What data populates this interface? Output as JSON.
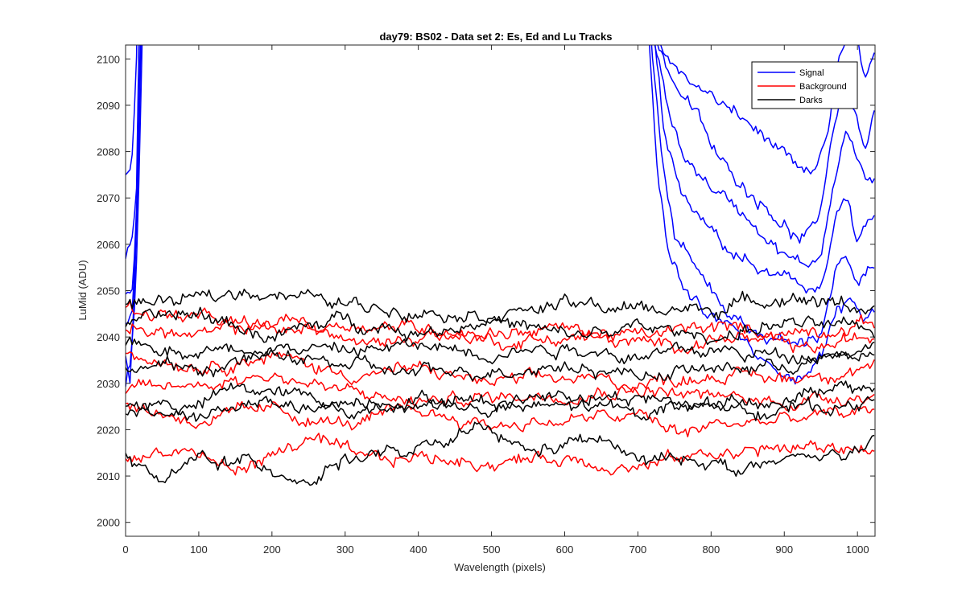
{
  "chart_data": {
    "type": "line",
    "title": "day79: BS02 - Data set 2: Es, Ed and Lu Tracks",
    "xlabel": "Wavelength (pixels)",
    "ylabel": "LuMid (ADU)",
    "xlim": [
      0,
      1024
    ],
    "ylim": [
      1997,
      2103
    ],
    "xticks": [
      0,
      100,
      200,
      300,
      400,
      500,
      600,
      700,
      800,
      900,
      1000
    ],
    "yticks": [
      2000,
      2010,
      2020,
      2030,
      2040,
      2050,
      2060,
      2070,
      2080,
      2090,
      2100
    ],
    "grid": false,
    "legend_position": "top-right",
    "legend": [
      {
        "name": "Signal",
        "color": "#0000ff"
      },
      {
        "name": "Background",
        "color": "#ff0000"
      },
      {
        "name": "Darks",
        "color": "#000000"
      }
    ],
    "series": [
      {
        "group": "Signal",
        "color": "#0000ff",
        "knots": [
          [
            0,
            2075
          ],
          [
            5,
            2074
          ],
          [
            10,
            2080
          ],
          [
            15,
            2100
          ],
          [
            18,
            2130
          ],
          [
            22,
            2160
          ],
          [
            40,
            2200
          ],
          [
            680,
            2200
          ],
          [
            710,
            2150
          ],
          [
            724,
            2104
          ],
          [
            740,
            2100
          ],
          [
            760,
            2097
          ],
          [
            800,
            2092
          ],
          [
            850,
            2086
          ],
          [
            880,
            2082
          ],
          [
            920,
            2075
          ],
          [
            940,
            2074
          ],
          [
            960,
            2085
          ],
          [
            975,
            2100
          ],
          [
            990,
            2106
          ],
          [
            1000,
            2104
          ],
          [
            1010,
            2095
          ],
          [
            1024,
            2100
          ]
        ]
      },
      {
        "group": "Signal",
        "color": "#0000ff",
        "knots": [
          [
            0,
            2058
          ],
          [
            10,
            2060
          ],
          [
            15,
            2070
          ],
          [
            18,
            2100
          ],
          [
            24,
            2160
          ],
          [
            40,
            2200
          ],
          [
            680,
            2200
          ],
          [
            705,
            2150
          ],
          [
            725,
            2104
          ],
          [
            750,
            2095
          ],
          [
            780,
            2088
          ],
          [
            810,
            2078
          ],
          [
            850,
            2072
          ],
          [
            880,
            2068
          ],
          [
            920,
            2061
          ],
          [
            945,
            2063
          ],
          [
            965,
            2083
          ],
          [
            980,
            2095
          ],
          [
            995,
            2090
          ],
          [
            1010,
            2080
          ],
          [
            1024,
            2088
          ]
        ]
      },
      {
        "group": "Signal",
        "color": "#0000ff",
        "knots": [
          [
            0,
            2050
          ],
          [
            10,
            2049
          ],
          [
            16,
            2070
          ],
          [
            20,
            2100
          ],
          [
            26,
            2160
          ],
          [
            40,
            2200
          ],
          [
            680,
            2200
          ],
          [
            705,
            2150
          ],
          [
            722,
            2104
          ],
          [
            740,
            2090
          ],
          [
            760,
            2080
          ],
          [
            790,
            2074
          ],
          [
            820,
            2070
          ],
          [
            860,
            2065
          ],
          [
            900,
            2058
          ],
          [
            925,
            2055
          ],
          [
            950,
            2058
          ],
          [
            970,
            2076
          ],
          [
            985,
            2085
          ],
          [
            1000,
            2078
          ],
          [
            1024,
            2072
          ]
        ]
      },
      {
        "group": "Signal",
        "color": "#0000ff",
        "knots": [
          [
            0,
            2042
          ],
          [
            10,
            2045
          ],
          [
            16,
            2070
          ],
          [
            22,
            2110
          ],
          [
            28,
            2160
          ],
          [
            40,
            2200
          ],
          [
            680,
            2200
          ],
          [
            708,
            2150
          ],
          [
            722,
            2104
          ],
          [
            735,
            2085
          ],
          [
            760,
            2070
          ],
          [
            790,
            2064
          ],
          [
            830,
            2058
          ],
          [
            870,
            2054
          ],
          [
            900,
            2052
          ],
          [
            930,
            2050
          ],
          [
            955,
            2053
          ],
          [
            970,
            2066
          ],
          [
            985,
            2070
          ],
          [
            1000,
            2060
          ],
          [
            1024,
            2066
          ]
        ]
      },
      {
        "group": "Signal",
        "color": "#0000ff",
        "knots": [
          [
            0,
            2036
          ],
          [
            6,
            2030
          ],
          [
            12,
            2048
          ],
          [
            18,
            2080
          ],
          [
            24,
            2130
          ],
          [
            30,
            2170
          ],
          [
            40,
            2200
          ],
          [
            680,
            2200
          ],
          [
            705,
            2150
          ],
          [
            718,
            2104
          ],
          [
            732,
            2080
          ],
          [
            750,
            2062
          ],
          [
            780,
            2055
          ],
          [
            810,
            2048
          ],
          [
            850,
            2042
          ],
          [
            880,
            2040
          ],
          [
            920,
            2038
          ],
          [
            950,
            2041
          ],
          [
            970,
            2055
          ],
          [
            985,
            2057
          ],
          [
            1000,
            2050
          ],
          [
            1024,
            2055
          ]
        ]
      },
      {
        "group": "Signal",
        "color": "#0000ff",
        "knots": [
          [
            0,
            2030
          ],
          [
            8,
            2036
          ],
          [
            14,
            2050
          ],
          [
            20,
            2085
          ],
          [
            26,
            2130
          ],
          [
            32,
            2170
          ],
          [
            40,
            2200
          ],
          [
            680,
            2200
          ],
          [
            702,
            2150
          ],
          [
            715,
            2104
          ],
          [
            728,
            2072
          ],
          [
            745,
            2056
          ],
          [
            770,
            2048
          ],
          [
            800,
            2044
          ],
          [
            830,
            2042
          ],
          [
            860,
            2036
          ],
          [
            880,
            2033
          ],
          [
            900,
            2033
          ],
          [
            925,
            2032
          ],
          [
            950,
            2036
          ],
          [
            970,
            2045
          ],
          [
            990,
            2048
          ],
          [
            1010,
            2044
          ],
          [
            1024,
            2046
          ]
        ]
      },
      {
        "group": "Background",
        "color": "#ff0000",
        "knots": [
          [
            0,
            2046
          ],
          [
            100,
            2044
          ],
          [
            200,
            2041
          ],
          [
            300,
            2043
          ],
          [
            400,
            2042
          ],
          [
            500,
            2041
          ],
          [
            600,
            2042
          ],
          [
            700,
            2040
          ],
          [
            800,
            2042
          ],
          [
            900,
            2041
          ],
          [
            1024,
            2043
          ]
        ]
      },
      {
        "group": "Background",
        "color": "#ff0000",
        "knots": [
          [
            0,
            2042
          ],
          [
            100,
            2040
          ],
          [
            220,
            2044
          ],
          [
            330,
            2038
          ],
          [
            420,
            2041
          ],
          [
            520,
            2039
          ],
          [
            620,
            2040
          ],
          [
            720,
            2038
          ],
          [
            830,
            2040
          ],
          [
            930,
            2037
          ],
          [
            1024,
            2040
          ]
        ]
      },
      {
        "group": "Background",
        "color": "#ff0000",
        "knots": [
          [
            0,
            2037
          ],
          [
            100,
            2034
          ],
          [
            200,
            2036
          ],
          [
            300,
            2032
          ],
          [
            400,
            2033
          ],
          [
            500,
            2030
          ],
          [
            600,
            2031
          ],
          [
            700,
            2030
          ],
          [
            800,
            2032
          ],
          [
            900,
            2031
          ],
          [
            1024,
            2034
          ]
        ]
      },
      {
        "group": "Background",
        "color": "#ff0000",
        "knots": [
          [
            0,
            2028
          ],
          [
            100,
            2030
          ],
          [
            200,
            2032
          ],
          [
            300,
            2028
          ],
          [
            400,
            2026
          ],
          [
            500,
            2027
          ],
          [
            600,
            2028
          ],
          [
            700,
            2029
          ],
          [
            800,
            2027
          ],
          [
            900,
            2026
          ],
          [
            1024,
            2028
          ]
        ]
      },
      {
        "group": "Background",
        "color": "#ff0000",
        "knots": [
          [
            0,
            2025
          ],
          [
            100,
            2022
          ],
          [
            200,
            2024
          ],
          [
            300,
            2021
          ],
          [
            400,
            2024
          ],
          [
            500,
            2021
          ],
          [
            600,
            2022
          ],
          [
            700,
            2023
          ],
          [
            760,
            2019
          ],
          [
            800,
            2021
          ],
          [
            900,
            2022
          ],
          [
            1024,
            2024
          ]
        ]
      },
      {
        "group": "Background",
        "color": "#ff0000",
        "knots": [
          [
            0,
            2014
          ],
          [
            80,
            2016
          ],
          [
            150,
            2011
          ],
          [
            250,
            2018
          ],
          [
            330,
            2013
          ],
          [
            400,
            2014
          ],
          [
            500,
            2013
          ],
          [
            600,
            2014
          ],
          [
            700,
            2012
          ],
          [
            800,
            2015
          ],
          [
            900,
            2016
          ],
          [
            1024,
            2016
          ]
        ]
      },
      {
        "group": "Darks",
        "color": "#000000",
        "knots": [
          [
            0,
            2047
          ],
          [
            100,
            2048
          ],
          [
            170,
            2050
          ],
          [
            200,
            2050
          ],
          [
            300,
            2047
          ],
          [
            400,
            2046
          ],
          [
            500,
            2045
          ],
          [
            600,
            2047
          ],
          [
            700,
            2046
          ],
          [
            800,
            2046
          ],
          [
            900,
            2049
          ],
          [
            1024,
            2046
          ]
        ]
      },
      {
        "group": "Darks",
        "color": "#000000",
        "knots": [
          [
            0,
            2043
          ],
          [
            100,
            2045
          ],
          [
            200,
            2040
          ],
          [
            300,
            2044
          ],
          [
            400,
            2041
          ],
          [
            500,
            2044
          ],
          [
            600,
            2040
          ],
          [
            700,
            2042
          ],
          [
            800,
            2040
          ],
          [
            900,
            2043
          ],
          [
            1024,
            2041
          ]
        ]
      },
      {
        "group": "Darks",
        "color": "#000000",
        "knots": [
          [
            0,
            2039
          ],
          [
            100,
            2037
          ],
          [
            200,
            2038
          ],
          [
            300,
            2037
          ],
          [
            400,
            2038
          ],
          [
            500,
            2037
          ],
          [
            600,
            2038
          ],
          [
            700,
            2036
          ],
          [
            800,
            2037
          ],
          [
            900,
            2036
          ],
          [
            1024,
            2038
          ]
        ]
      },
      {
        "group": "Darks",
        "color": "#000000",
        "knots": [
          [
            0,
            2034
          ],
          [
            100,
            2033
          ],
          [
            200,
            2036
          ],
          [
            300,
            2034
          ],
          [
            400,
            2032
          ],
          [
            500,
            2033
          ],
          [
            600,
            2034
          ],
          [
            700,
            2032
          ],
          [
            800,
            2033
          ],
          [
            900,
            2034
          ],
          [
            1024,
            2036
          ]
        ]
      },
      {
        "group": "Darks",
        "color": "#000000",
        "knots": [
          [
            0,
            2026
          ],
          [
            100,
            2025
          ],
          [
            150,
            2029
          ],
          [
            200,
            2028
          ],
          [
            300,
            2026
          ],
          [
            400,
            2027
          ],
          [
            500,
            2026
          ],
          [
            600,
            2028
          ],
          [
            700,
            2027
          ],
          [
            800,
            2025
          ],
          [
            900,
            2027
          ],
          [
            1024,
            2029
          ]
        ]
      },
      {
        "group": "Darks",
        "color": "#000000",
        "knots": [
          [
            0,
            2024
          ],
          [
            100,
            2023
          ],
          [
            200,
            2026
          ],
          [
            300,
            2023
          ],
          [
            400,
            2026
          ],
          [
            500,
            2024
          ],
          [
            600,
            2025
          ],
          [
            700,
            2024
          ],
          [
            800,
            2026
          ],
          [
            900,
            2024
          ],
          [
            1024,
            2026
          ]
        ]
      },
      {
        "group": "Darks",
        "color": "#000000",
        "knots": [
          [
            0,
            2016
          ],
          [
            50,
            2008
          ],
          [
            100,
            2014
          ],
          [
            200,
            2012
          ],
          [
            250,
            2009
          ],
          [
            300,
            2014
          ],
          [
            400,
            2015
          ],
          [
            490,
            2020
          ],
          [
            550,
            2015
          ],
          [
            650,
            2018
          ],
          [
            700,
            2013
          ],
          [
            800,
            2014
          ],
          [
            830,
            2011
          ],
          [
            900,
            2013
          ],
          [
            1024,
            2016
          ]
        ]
      }
    ]
  }
}
